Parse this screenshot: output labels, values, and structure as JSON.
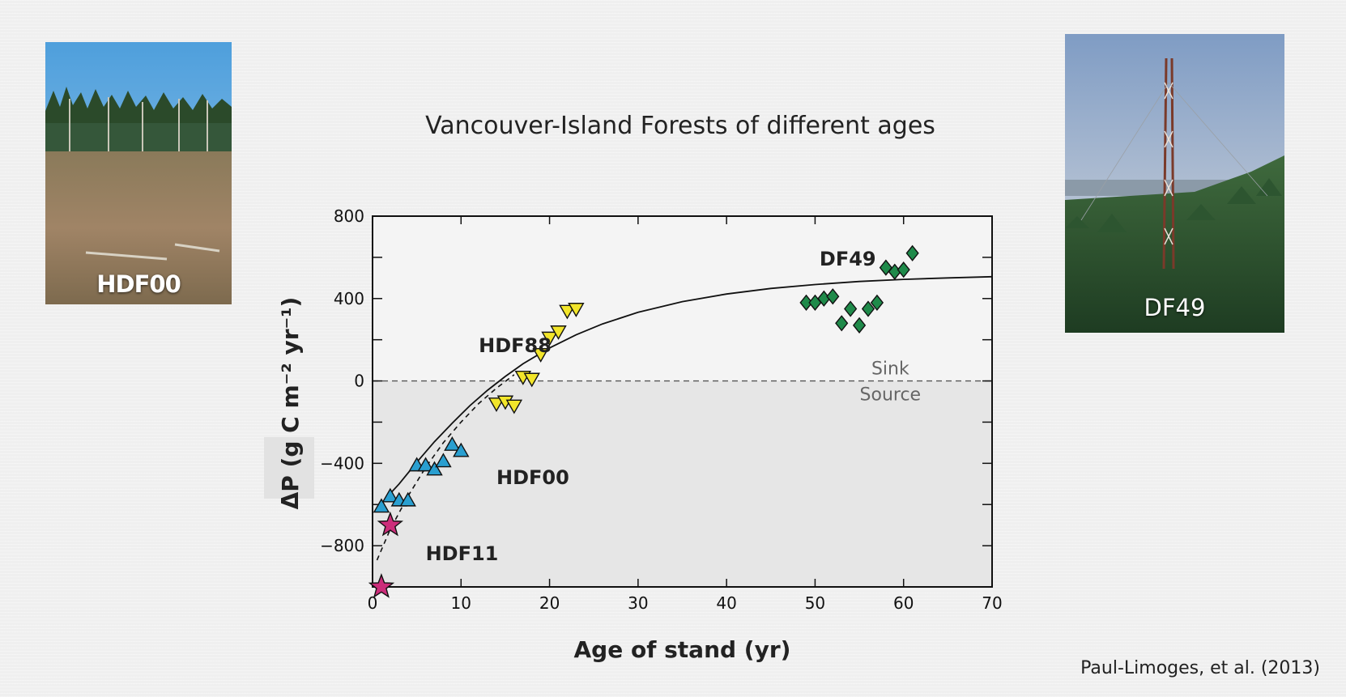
{
  "title": "Vancouver-Island Forests of different ages",
  "citation": "Paul-Limoges, et al. (2013)",
  "photos": {
    "left_label": "HDF00",
    "right_label": "DF49"
  },
  "colors": {
    "hdf00": "#2a9fd0",
    "hdf88": "#f2e52a",
    "hdf11": "#cc2d7a",
    "df49": "#1f8a4a",
    "source_region": "#e6e6e6"
  },
  "chart_data": {
    "type": "scatter",
    "xlabel": "Age of stand (yr)",
    "ylabel_main": "ΔP",
    "ylabel_units": "(g C m⁻² yr⁻¹)",
    "xlim": [
      0,
      70
    ],
    "ylim": [
      -1000,
      800
    ],
    "xticks": [
      0,
      10,
      20,
      30,
      40,
      50,
      60,
      70
    ],
    "yticks": [
      800,
      400,
      0,
      -400,
      -800
    ],
    "ytick_labels": [
      "800",
      "400",
      "0",
      "−400",
      "−800"
    ],
    "region_labels": {
      "sink": "Sink",
      "source": "Source"
    },
    "series": [
      {
        "name": "HDF11",
        "marker": "star",
        "points": [
          [
            1,
            -1000
          ],
          [
            2,
            -700
          ]
        ]
      },
      {
        "name": "HDF00",
        "marker": "triangle-up",
        "points": [
          [
            1,
            -610
          ],
          [
            2,
            -560
          ],
          [
            3,
            -580
          ],
          [
            4,
            -580
          ],
          [
            5,
            -410
          ],
          [
            6,
            -410
          ],
          [
            7,
            -430
          ],
          [
            8,
            -390
          ],
          [
            9,
            -310
          ],
          [
            10,
            -340
          ]
        ]
      },
      {
        "name": "HDF88",
        "marker": "triangle-down",
        "points": [
          [
            14,
            -110
          ],
          [
            15,
            -100
          ],
          [
            16,
            -120
          ],
          [
            17,
            20
          ],
          [
            18,
            10
          ],
          [
            19,
            130
          ],
          [
            20,
            210
          ],
          [
            21,
            240
          ],
          [
            22,
            340
          ],
          [
            23,
            350
          ]
        ]
      },
      {
        "name": "DF49",
        "marker": "diamond",
        "points": [
          [
            49,
            380
          ],
          [
            50,
            380
          ],
          [
            51,
            400
          ],
          [
            52,
            410
          ],
          [
            53,
            280
          ],
          [
            54,
            350
          ],
          [
            55,
            270
          ],
          [
            56,
            350
          ],
          [
            57,
            380
          ],
          [
            58,
            550
          ],
          [
            59,
            530
          ],
          [
            60,
            540
          ],
          [
            61,
            620
          ]
        ]
      }
    ],
    "curve_solid": [
      [
        1.5,
        -570
      ],
      [
        3,
        -500
      ],
      [
        5,
        -395
      ],
      [
        7,
        -295
      ],
      [
        9,
        -205
      ],
      [
        11,
        -120
      ],
      [
        13,
        -45
      ],
      [
        15,
        22
      ],
      [
        17,
        83
      ],
      [
        20,
        160
      ],
      [
        23,
        224
      ],
      [
        26,
        277
      ],
      [
        30,
        333
      ],
      [
        35,
        385
      ],
      [
        40,
        422
      ],
      [
        45,
        449
      ],
      [
        50,
        468
      ],
      [
        55,
        483
      ],
      [
        60,
        493
      ],
      [
        65,
        500
      ],
      [
        70,
        506
      ]
    ],
    "curve_dashed": [
      [
        0.5,
        -870
      ],
      [
        2,
        -720
      ],
      [
        4,
        -560
      ],
      [
        6,
        -420
      ],
      [
        8,
        -300
      ],
      [
        10,
        -200
      ],
      [
        12,
        -110
      ],
      [
        14,
        -35
      ],
      [
        16,
        30
      ]
    ],
    "annotations": [
      {
        "text": "DF49",
        "x": 50.5,
        "y": 560
      },
      {
        "text": "HDF88",
        "x": 12,
        "y": 140
      },
      {
        "text": "HDF00",
        "x": 14,
        "y": -500
      },
      {
        "text": "HDF11",
        "x": 6,
        "y": -870
      }
    ]
  }
}
